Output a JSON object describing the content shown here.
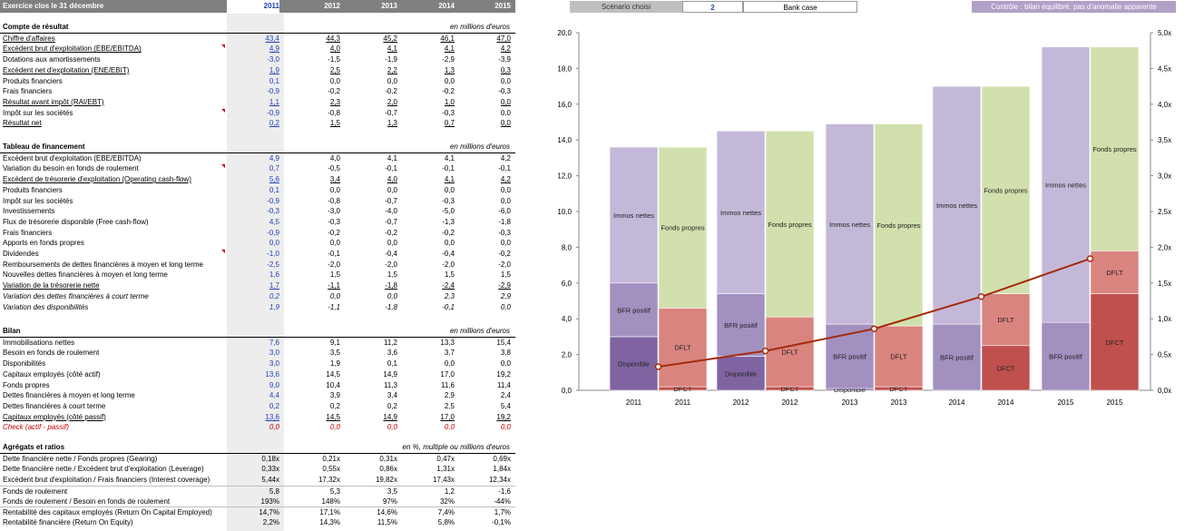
{
  "header": {
    "title": "Exercice clos le 31 décembre",
    "years": [
      "2011",
      "2012",
      "2013",
      "2014",
      "2015"
    ]
  },
  "controls": {
    "scenario_label": "Scénario choisi",
    "scenario_value": "2",
    "scenario_name": "Bank case",
    "control_text": "Contrôle : bilan équilibré, pas d'anomalie apparente"
  },
  "sections": {
    "cr": {
      "title": "Compte de résultat",
      "unit": "en millions d'euros"
    },
    "tf": {
      "title": "Tableau de financement",
      "unit": "en millions d'euros"
    },
    "bilan": {
      "title": "Bilan",
      "unit": "en millions d'euros"
    },
    "ratios": {
      "title": "Agrégats et ratios",
      "unit": "en %, multiple ou millions d'euros"
    }
  },
  "rows": {
    "cr": [
      {
        "label": "Chiffre d'affaires",
        "values": [
          "43,4",
          "44,3",
          "45,2",
          "46,1",
          "47,0"
        ]
      },
      {
        "label": "Excédent brut d'exploitation (EBE/EBITDA)",
        "values": [
          "4,9",
          "4,0",
          "4,1",
          "4,1",
          "4,2"
        ]
      },
      {
        "label": "Dotations aux amortissements",
        "values": [
          "-3,0",
          "-1,5",
          "-1,9",
          "-2,9",
          "-3,9"
        ]
      },
      {
        "label": "Excédent net d'exploitation (ENE/EBIT)",
        "values": [
          "1,9",
          "2,5",
          "2,2",
          "1,3",
          "0,3"
        ]
      },
      {
        "label": "Produits financiers",
        "values": [
          "0,1",
          "0,0",
          "0,0",
          "0,0",
          "0,0"
        ]
      },
      {
        "label": "Frais financiers",
        "values": [
          "-0,9",
          "-0,2",
          "-0,2",
          "-0,2",
          "-0,3"
        ]
      },
      {
        "label": "Résultat avant impôt (RAI/EBT)",
        "values": [
          "1,1",
          "2,3",
          "2,0",
          "1,0",
          "0,0"
        ]
      },
      {
        "label": "Impôt sur les sociétés",
        "values": [
          "-0,9",
          "-0,8",
          "-0,7",
          "-0,3",
          "0,0"
        ]
      },
      {
        "label": "Résultat net",
        "values": [
          "0,2",
          "1,5",
          "1,3",
          "0,7",
          "0,0"
        ]
      }
    ],
    "tf": [
      {
        "label": "Excédent brut d'exploitation (EBE/EBITDA)",
        "values": [
          "4,9",
          "4,0",
          "4,1",
          "4,1",
          "4,2"
        ]
      },
      {
        "label": "Variation du besoin en fonds de roulement",
        "values": [
          "0,7",
          "-0,5",
          "-0,1",
          "-0,1",
          "-0,1"
        ]
      },
      {
        "label": "Excédent de trésorerie d'exploitation (Operating cash-flow)",
        "values": [
          "5,6",
          "3,4",
          "4,0",
          "4,1",
          "4,2"
        ]
      },
      {
        "label": "Produits financiers",
        "values": [
          "0,1",
          "0,0",
          "0,0",
          "0,0",
          "0,0"
        ]
      },
      {
        "label": "Impôt sur les sociétés",
        "values": [
          "-0,9",
          "-0,8",
          "-0,7",
          "-0,3",
          "0,0"
        ]
      },
      {
        "label": "Investissements",
        "values": [
          "-0,3",
          "-3,0",
          "-4,0",
          "-5,0",
          "-6,0"
        ]
      },
      {
        "label": "Flux de trésorerie disponible (Free cash-flow)",
        "values": [
          "4,5",
          "-0,3",
          "-0,7",
          "-1,3",
          "-1,8"
        ]
      },
      {
        "label": "Frais financiers",
        "values": [
          "-0,9",
          "-0,2",
          "-0,2",
          "-0,2",
          "-0,3"
        ]
      },
      {
        "label": "Apports en fonds propres",
        "values": [
          "0,0",
          "0,0",
          "0,0",
          "0,0",
          "0,0"
        ]
      },
      {
        "label": "Dividendes",
        "values": [
          "-1,0",
          "-0,1",
          "-0,4",
          "-0,4",
          "-0,2"
        ]
      },
      {
        "label": "Remboursements de dettes financières à moyen et long terme",
        "values": [
          "-2,5",
          "-2,0",
          "-2,0",
          "-2,0",
          "-2,0"
        ]
      },
      {
        "label": "Nouvelles dettes financières à moyen et long terme",
        "values": [
          "1,6",
          "1,5",
          "1,5",
          "1,5",
          "1,5"
        ]
      },
      {
        "label": "Variation de la trésorerie nette",
        "values": [
          "1,7",
          "-1,1",
          "-1,8",
          "-2,4",
          "-2,9"
        ]
      },
      {
        "label": "Variation des dettes financières à court terme",
        "values": [
          "0,2",
          "0,0",
          "0,0",
          "2,3",
          "2,9"
        ]
      },
      {
        "label": "Variation des disponibilités",
        "values": [
          "1,9",
          "-1,1",
          "-1,8",
          "-0,1",
          "0,0"
        ]
      }
    ],
    "bilan": [
      {
        "label": "Immobilisations nettes",
        "values": [
          "7,6",
          "9,1",
          "11,2",
          "13,3",
          "15,4"
        ]
      },
      {
        "label": "Besoin en fonds de roulement",
        "values": [
          "3,0",
          "3,5",
          "3,6",
          "3,7",
          "3,8"
        ]
      },
      {
        "label": "Disponibilités",
        "values": [
          "3,0",
          "1,9",
          "0,1",
          "0,0",
          "0,0"
        ]
      },
      {
        "label": "Capitaux employés (côté actif)",
        "values": [
          "13,6",
          "14,5",
          "14,9",
          "17,0",
          "19,2"
        ]
      },
      {
        "label": "Fonds propres",
        "values": [
          "9,0",
          "10,4",
          "11,3",
          "11,6",
          "11,4"
        ]
      },
      {
        "label": "Dettes financières à moyen et long terme",
        "values": [
          "4,4",
          "3,9",
          "3,4",
          "2,9",
          "2,4"
        ]
      },
      {
        "label": "Dettes financières à court terme",
        "values": [
          "0,2",
          "0,2",
          "0,2",
          "2,5",
          "5,4"
        ]
      },
      {
        "label": "Capitaux employés (côté passif)",
        "values": [
          "13,6",
          "14,5",
          "14,9",
          "17,0",
          "19,2"
        ]
      },
      {
        "label": "Check (actif - passif)",
        "values": [
          "0,0",
          "0,0",
          "0,0",
          "0,0",
          "0,0"
        ]
      }
    ],
    "ratios": [
      {
        "label": "Dette financière nette / Fonds propres (Gearing)",
        "values": [
          "0,18x",
          "0,21x",
          "0,31x",
          "0,47x",
          "0,69x"
        ]
      },
      {
        "label": "Dette financière nette / Excédent brut d'exploitation (Leverage)",
        "values": [
          "0,33x",
          "0,55x",
          "0,86x",
          "1,31x",
          "1,84x"
        ]
      },
      {
        "label": "Excédent brut d'exploitation / Frais financiers (Interest coverage)",
        "values": [
          "5,44x",
          "17,32x",
          "19,82x",
          "17,43x",
          "12,34x"
        ]
      },
      {
        "label": "Fonds de roulement",
        "values": [
          "5,8",
          "5,3",
          "3,5",
          "1,2",
          "-1,6"
        ]
      },
      {
        "label": "Fonds de roulement / Besoin en fonds de roulement",
        "values": [
          "193%",
          "148%",
          "97%",
          "32%",
          "-44%"
        ]
      },
      {
        "label": "Rentabilité des capitaux employés (Return On Capital Employed)",
        "values": [
          "14,7%",
          "17,1%",
          "14,6%",
          "7,4%",
          "1,7%"
        ]
      },
      {
        "label": "Rentabilité financière (Return On Equity)",
        "values": [
          "2,2%",
          "14,3%",
          "11,5%",
          "5,8%",
          "-0,1%"
        ]
      }
    ]
  },
  "chart_data": {
    "type": "bar",
    "categories": [
      "2011",
      "2011",
      "2012",
      "2012",
      "2013",
      "2013",
      "2014",
      "2014",
      "2015",
      "2015"
    ],
    "ylim": [
      0,
      20
    ],
    "y2lim": [
      0,
      5
    ],
    "yticks": [
      "0,0",
      "2,0",
      "4,0",
      "6,0",
      "8,0",
      "10,0",
      "12,0",
      "14,0",
      "16,0",
      "18,0",
      "20,0"
    ],
    "y2ticks": [
      "0,0x",
      "0,5x",
      "1,0x",
      "1,5x",
      "2,0x",
      "2,5x",
      "3,0x",
      "3,5x",
      "4,0x",
      "4,5x",
      "5,0x"
    ],
    "stacks": [
      [
        {
          "name": "Disponible",
          "value": 3.0,
          "color": "#8064a2"
        },
        {
          "name": "BFR positif",
          "value": 3.0,
          "color": "#a290c0"
        },
        {
          "name": "Immos nettes",
          "value": 7.6,
          "color": "#c4b8d9"
        }
      ],
      [
        {
          "name": "DFCT",
          "value": 0.2,
          "color": "#c0504d"
        },
        {
          "name": "DFLT",
          "value": 4.4,
          "color": "#d9847f"
        },
        {
          "name": "Fonds propres",
          "value": 9.0,
          "color": "#d1e0ad"
        }
      ],
      [
        {
          "name": "Disponible",
          "value": 1.9,
          "color": "#8064a2"
        },
        {
          "name": "BFR positif",
          "value": 3.5,
          "color": "#a290c0"
        },
        {
          "name": "Immos nettes",
          "value": 9.1,
          "color": "#c4b8d9"
        }
      ],
      [
        {
          "name": "DFCT",
          "value": 0.2,
          "color": "#c0504d"
        },
        {
          "name": "DFLT",
          "value": 3.9,
          "color": "#d9847f"
        },
        {
          "name": "Fonds propres",
          "value": 10.4,
          "color": "#d1e0ad"
        }
      ],
      [
        {
          "name": "Disponible",
          "value": 0.1,
          "color": "#8064a2"
        },
        {
          "name": "BFR positif",
          "value": 3.6,
          "color": "#a290c0"
        },
        {
          "name": "Immos nettes",
          "value": 11.2,
          "color": "#c4b8d9"
        }
      ],
      [
        {
          "name": "DFCT",
          "value": 0.2,
          "color": "#c0504d"
        },
        {
          "name": "DFLT",
          "value": 3.4,
          "color": "#d9847f"
        },
        {
          "name": "Fonds propres",
          "value": 11.3,
          "color": "#d1e0ad"
        }
      ],
      [
        {
          "name": "Disponible",
          "value": 0.0,
          "color": "#8064a2"
        },
        {
          "name": "BFR positif",
          "value": 3.7,
          "color": "#a290c0"
        },
        {
          "name": "Immos nettes",
          "value": 13.3,
          "color": "#c4b8d9"
        }
      ],
      [
        {
          "name": "DFCT",
          "value": 2.5,
          "color": "#c0504d"
        },
        {
          "name": "DFLT",
          "value": 2.9,
          "color": "#d9847f"
        },
        {
          "name": "Fonds propres",
          "value": 11.6,
          "color": "#d1e0ad"
        }
      ],
      [
        {
          "name": "Disponible",
          "value": 0.0,
          "color": "#8064a2"
        },
        {
          "name": "BFR positif",
          "value": 3.8,
          "color": "#a290c0"
        },
        {
          "name": "Immos nettes",
          "value": 15.4,
          "color": "#c4b8d9"
        }
      ],
      [
        {
          "name": "DFCT",
          "value": 5.4,
          "color": "#c0504d"
        },
        {
          "name": "DFLT",
          "value": 2.4,
          "color": "#d9847f"
        },
        {
          "name": "Fonds propres",
          "value": 11.4,
          "color": "#d1e0ad"
        }
      ]
    ],
    "leverage_line": {
      "values": [
        0.33,
        0.55,
        0.86,
        1.31,
        1.84
      ],
      "color": "#a52a0a"
    }
  }
}
